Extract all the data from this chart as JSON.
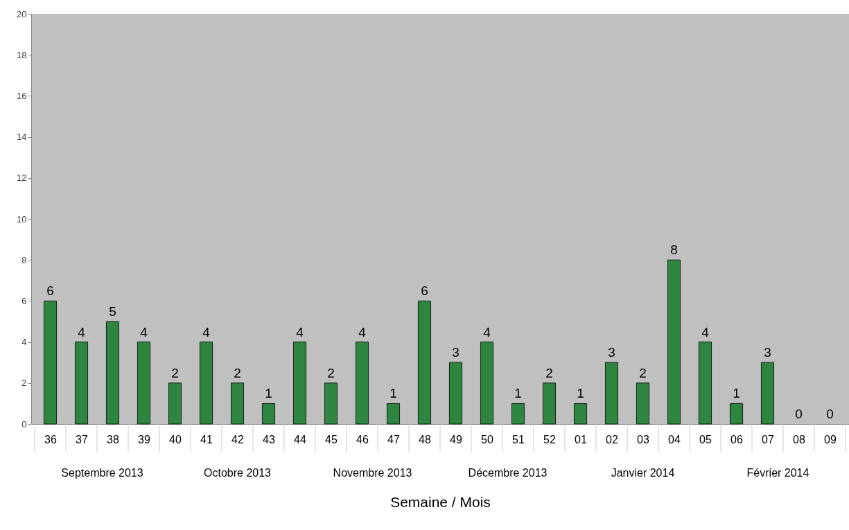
{
  "chart_data": {
    "type": "bar",
    "xlabel": "Semaine /  Mois",
    "categories": [
      "36",
      "37",
      "38",
      "39",
      "40",
      "41",
      "42",
      "43",
      "44",
      "45",
      "46",
      "47",
      "48",
      "49",
      "50",
      "51",
      "52",
      "01",
      "02",
      "03",
      "04",
      "05",
      "06",
      "07",
      "08",
      "09"
    ],
    "values": [
      6,
      4,
      5,
      4,
      2,
      4,
      2,
      1,
      4,
      2,
      4,
      1,
      6,
      3,
      4,
      1,
      2,
      1,
      3,
      2,
      8,
      4,
      1,
      3,
      0,
      0
    ],
    "color": "#2e8540",
    "ylim": [
      0,
      20
    ],
    "yticks": [
      0,
      2,
      4,
      6,
      8,
      10,
      12,
      14,
      16,
      18,
      20
    ],
    "grid": false,
    "data_labels": true,
    "annotations": [
      "Septembre 2013",
      "Octobre 2013",
      "Novembre 2013",
      "Décembre 2013",
      "Janvier 2014",
      "Février 2014"
    ]
  }
}
